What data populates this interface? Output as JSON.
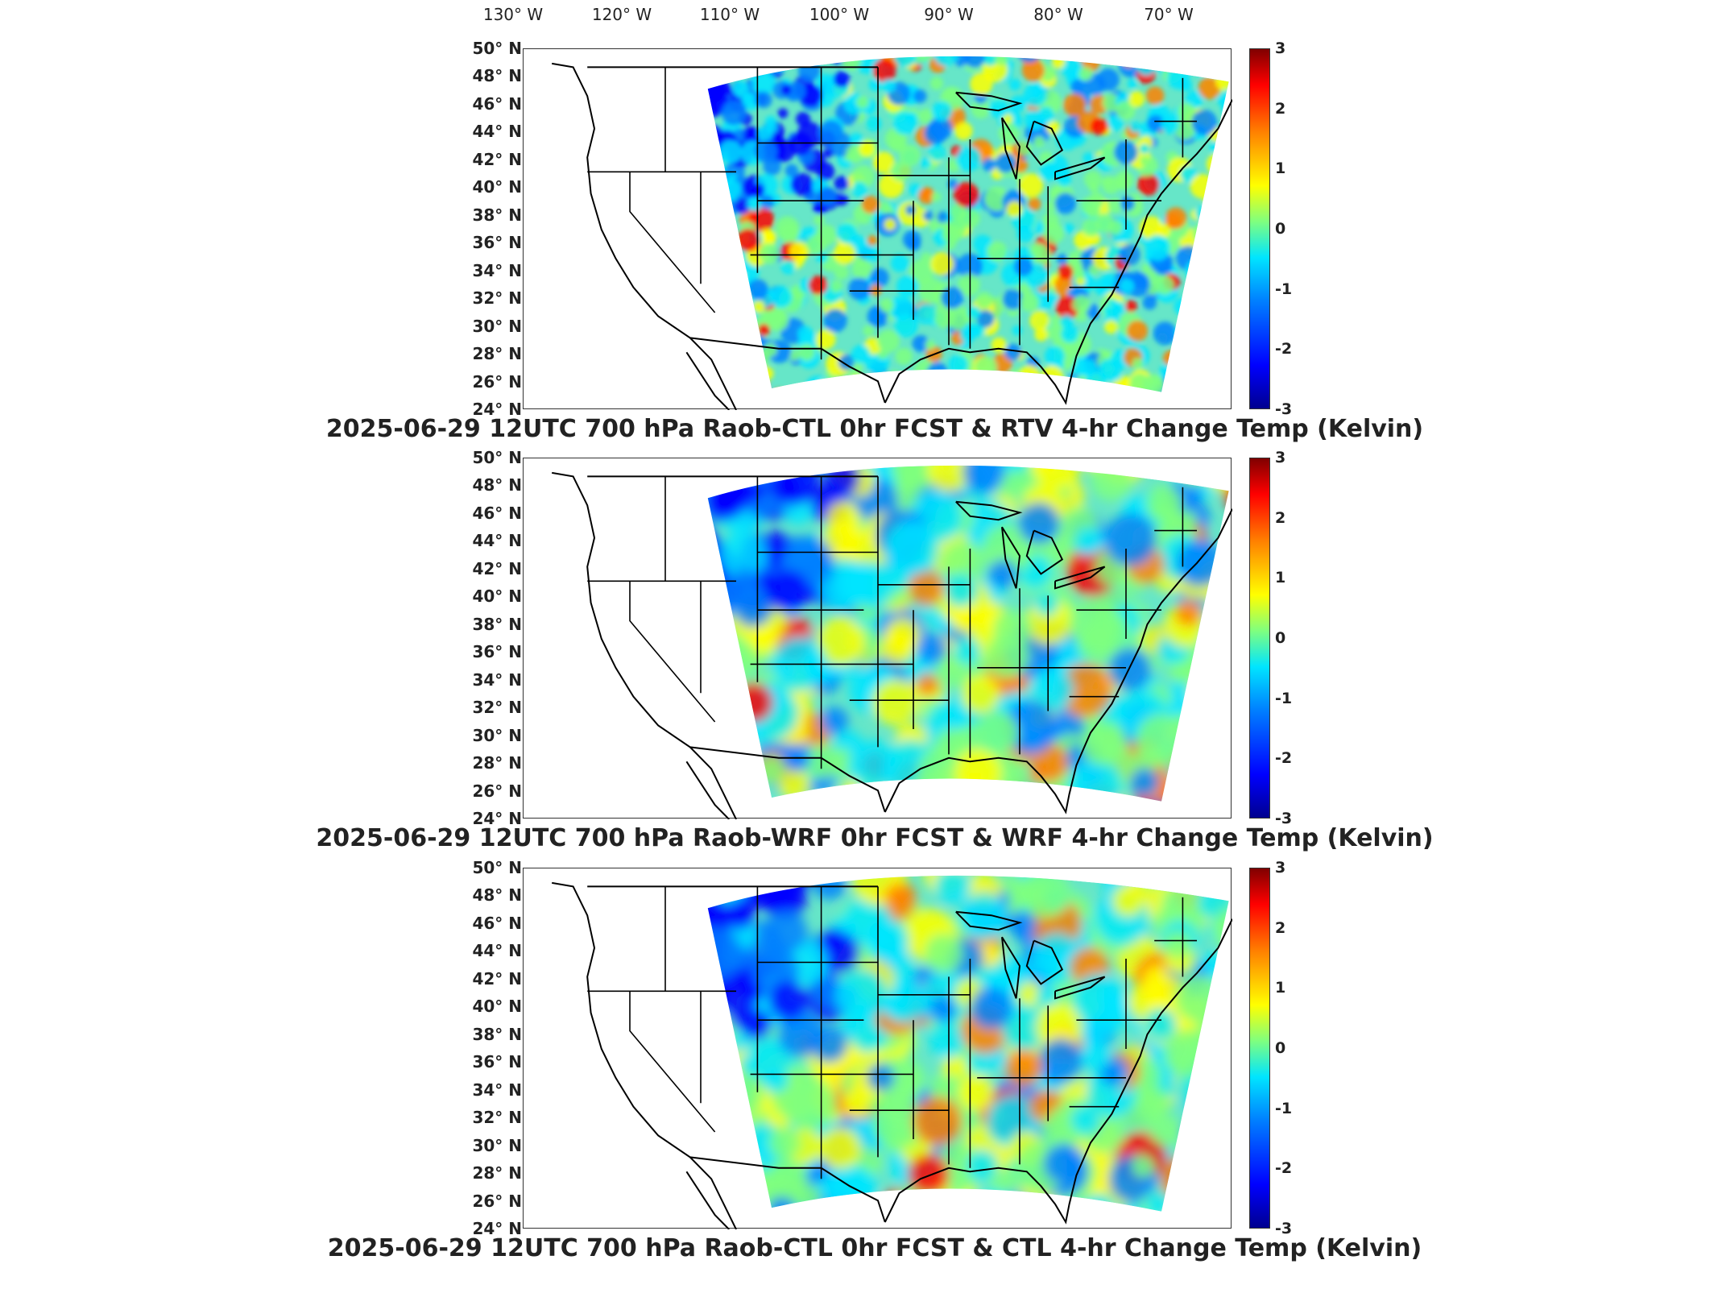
{
  "longitude_labels": [
    "130° W",
    "120° W",
    "110° W",
    "100° W",
    "90° W",
    "80° W",
    "70° W"
  ],
  "latitude_labels": [
    "50° N",
    "48° N",
    "46° N",
    "44° N",
    "42° N",
    "40° N",
    "38° N",
    "36° N",
    "34° N",
    "32° N",
    "30° N",
    "28° N",
    "26° N",
    "24° N"
  ],
  "colorbar": {
    "ticks": [
      "3",
      "2",
      "1",
      "0",
      "-1",
      "-2",
      "-3"
    ],
    "range": [
      -3,
      3
    ],
    "colormap": "jet",
    "colors": [
      "#00008f",
      "#0000ff",
      "#0080ff",
      "#00e5ff",
      "#7fff7f",
      "#ffff00",
      "#ff8000",
      "#ff0000",
      "#800000"
    ]
  },
  "panels": [
    {
      "title": "2025-06-29 12UTC 700 hPa Raob-CTL 0hr FCST & RTV 4-hr Change Temp (Kelvin)"
    },
    {
      "title": "2025-06-29 12UTC 700 hPa Raob-WRF 0hr FCST & WRF 4-hr Change Temp (Kelvin)"
    },
    {
      "title": "2025-06-29 12UTC 700 hPa Raob-CTL 0hr FCST & CTL 4-hr Change Temp (Kelvin)"
    }
  ]
}
